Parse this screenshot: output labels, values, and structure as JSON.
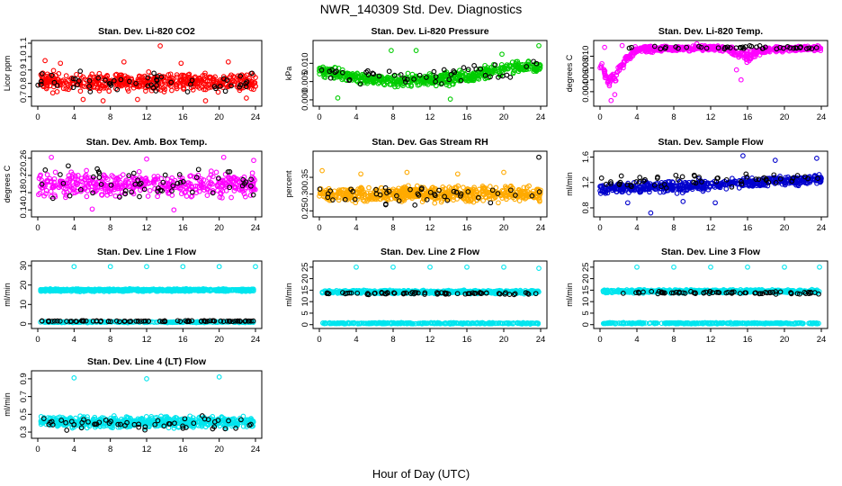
{
  "title": "NWR_140309  Std. Dev. Diagnostics",
  "xlabel": "Hour of Day (UTC)",
  "chart_data": [
    {
      "id": "co2",
      "type": "scatter",
      "title": "Stan. Dev. Li-820 CO2",
      "ylabel": "Licor ppm",
      "color": "#ff0000",
      "xlim": [
        0,
        24
      ],
      "ylim": [
        0.65,
        1.1
      ],
      "xticks": [
        "0",
        "4",
        "8",
        "12",
        "16",
        "20",
        "24"
      ],
      "yticks": [
        "0.7",
        "0.8",
        "0.9",
        "1.0",
        "1.1"
      ],
      "ytick_values": [
        0.7,
        0.8,
        0.9,
        1.0,
        1.1
      ],
      "series": [
        {
          "name": "dense",
          "band": [
            [
              0,
              0.72,
              0.9
            ],
            [
              24,
              0.72,
              0.9
            ]
          ],
          "count": 520,
          "seed": 11
        },
        {
          "name": "outliers",
          "x": [
            0.8,
            2.5,
            5.0,
            7.2,
            9.5,
            11.0,
            13.5,
            15.8,
            18.5,
            21.0,
            23.0
          ],
          "y": [
            0.97,
            0.95,
            0.68,
            0.67,
            0.96,
            0.68,
            1.08,
            0.95,
            0.67,
            0.96,
            0.69
          ]
        },
        {
          "name": "black",
          "color": "#000000",
          "band": [
            [
              0,
              0.7,
              0.92
            ],
            [
              24,
              0.7,
              0.92
            ]
          ],
          "count": 55,
          "seed": 12
        }
      ]
    },
    {
      "id": "press",
      "type": "scatter",
      "title": "Stan. Dev. Li-820 Pressure",
      "ylabel": "kPa",
      "color": "#00cc00",
      "xlim": [
        0,
        24
      ],
      "ylim": [
        -0.001,
        0.0155
      ],
      "xticks": [
        "0",
        "4",
        "8",
        "12",
        "16",
        "20",
        "24"
      ],
      "yticks": [
        "0.000",
        "0.005",
        "0.010"
      ],
      "ytick_values": [
        0.0,
        0.005,
        0.01
      ],
      "series": [
        {
          "name": "dense",
          "band": [
            [
              0,
              0.006,
              0.01
            ],
            [
              4,
              0.004,
              0.008
            ],
            [
              8,
              0.003,
              0.007
            ],
            [
              12,
              0.003,
              0.008
            ],
            [
              16,
              0.004,
              0.009
            ],
            [
              20,
              0.006,
              0.011
            ],
            [
              24,
              0.007,
              0.011
            ]
          ],
          "count": 560,
          "seed": 21
        },
        {
          "name": "outliers",
          "x": [
            2.0,
            7.8,
            10.5,
            14.2,
            19.8,
            23.8
          ],
          "y": [
            0.0005,
            0.0135,
            0.0135,
            0.0002,
            0.0125,
            0.0148
          ]
        },
        {
          "name": "black",
          "color": "#000000",
          "band": [
            [
              0,
              0.004,
              0.011
            ],
            [
              12,
              0.003,
              0.009
            ],
            [
              24,
              0.006,
              0.013
            ]
          ],
          "count": 50,
          "seed": 22
        }
      ]
    },
    {
      "id": "temp",
      "type": "scatter",
      "title": "Stan. Dev. Li-820 Temp.",
      "ylabel": "degrees C",
      "color": "#ff00ff",
      "xlim": [
        0,
        24
      ],
      "ylim": [
        0.002,
        0.0122
      ],
      "xticks": [
        "0",
        "4",
        "8",
        "12",
        "16",
        "20",
        "24"
      ],
      "yticks": [
        "0.004",
        "0.006",
        "0.008",
        "0.010"
      ],
      "ytick_values": [
        0.004,
        0.006,
        0.008,
        0.01
      ],
      "series": [
        {
          "name": "dense",
          "band": [
            [
              0,
              0.0075,
              0.0095
            ],
            [
              1,
              0.004,
              0.0075
            ],
            [
              2,
              0.006,
              0.009
            ],
            [
              3,
              0.009,
              0.011
            ],
            [
              4,
              0.0105,
              0.0118
            ],
            [
              12,
              0.0108,
              0.012
            ],
            [
              14,
              0.0105,
              0.012
            ],
            [
              15,
              0.009,
              0.0115
            ],
            [
              16,
              0.0085,
              0.0112
            ],
            [
              18,
              0.0105,
              0.0118
            ],
            [
              24,
              0.0108,
              0.012
            ]
          ],
          "count": 560,
          "seed": 31
        },
        {
          "name": "outliers",
          "x": [
            1.2,
            1.6,
            0.5,
            2.4,
            15.3,
            14.8,
            10.5
          ],
          "y": [
            0.0025,
            0.0035,
            0.0115,
            0.0118,
            0.006,
            0.0077,
            0.0121
          ]
        },
        {
          "name": "black",
          "color": "#000000",
          "band": [
            [
              3,
              0.011,
              0.012
            ],
            [
              24,
              0.011,
              0.012
            ]
          ],
          "count": 45,
          "seed": 32
        }
      ]
    },
    {
      "id": "amb",
      "type": "scatter",
      "title": "Stan. Dev. Amb. Box Temp.",
      "ylabel": "degrees C",
      "color": "#ff00ff",
      "xlim": [
        0,
        24
      ],
      "ylim": [
        0.13,
        0.27
      ],
      "xticks": [
        "0",
        "4",
        "8",
        "12",
        "16",
        "20",
        "24"
      ],
      "yticks": [
        "0.14",
        "0.18",
        "0.22",
        "0.26"
      ],
      "ytick_values": [
        0.14,
        0.18,
        0.22,
        0.26
      ],
      "series": [
        {
          "name": "dense",
          "band": [
            [
              0,
              0.16,
              0.235
            ],
            [
              24,
              0.16,
              0.235
            ]
          ],
          "count": 440,
          "seed": 41
        },
        {
          "name": "outliers",
          "x": [
            1.5,
            12.0,
            20.5,
            23.8,
            6.0,
            15.0
          ],
          "y": [
            0.262,
            0.258,
            0.262,
            0.255,
            0.142,
            0.14
          ]
        },
        {
          "name": "black",
          "color": "#000000",
          "band": [
            [
              0,
              0.15,
              0.25
            ],
            [
              24,
              0.15,
              0.25
            ]
          ],
          "count": 55,
          "seed": 42
        }
      ]
    },
    {
      "id": "rh",
      "type": "scatter",
      "title": "Stan. Dev. Gas Stream RH",
      "ylabel": "percent",
      "color": "#ffaa00",
      "xlim": [
        0,
        24
      ],
      "ylim": [
        0.24,
        0.42
      ],
      "xticks": [
        "0",
        "4",
        "8",
        "12",
        "16",
        "20",
        "24"
      ],
      "yticks": [
        "0.25",
        "0.30",
        "0.35"
      ],
      "ytick_values": [
        0.25,
        0.3,
        0.35
      ],
      "series": [
        {
          "name": "dense",
          "band": [
            [
              0,
              0.27,
              0.33
            ],
            [
              24,
              0.27,
              0.33
            ]
          ],
          "count": 620,
          "seed": 51
        },
        {
          "name": "outliers",
          "x": [
            0.3,
            4.5,
            9.5,
            15.0,
            20.0
          ],
          "y": [
            0.37,
            0.36,
            0.365,
            0.36,
            0.365
          ]
        },
        {
          "name": "black",
          "color": "#000000",
          "band": [
            [
              0,
              0.26,
              0.34
            ],
            [
              24,
              0.26,
              0.34
            ]
          ],
          "count": 45,
          "seed": 52,
          "extra_x": [
            23.8
          ],
          "extra_y": [
            0.41
          ]
        }
      ]
    },
    {
      "id": "flow",
      "type": "scatter",
      "title": "Stan. Dev. Sample Flow",
      "ylabel": "ml/min",
      "color": "#0000cc",
      "xlim": [
        0,
        24
      ],
      "ylim": [
        0.7,
        1.65
      ],
      "xticks": [
        "0",
        "4",
        "8",
        "12",
        "16",
        "20",
        "24"
      ],
      "yticks": [
        "0.8",
        "1.2",
        "1.6"
      ],
      "ytick_values": [
        0.8,
        1.2,
        1.6
      ],
      "series": [
        {
          "name": "dense",
          "band": [
            [
              0,
              1.0,
              1.2
            ],
            [
              8,
              1.0,
              1.25
            ],
            [
              16,
              1.1,
              1.3
            ],
            [
              24,
              1.15,
              1.35
            ]
          ],
          "count": 560,
          "seed": 61
        },
        {
          "name": "outliers",
          "x": [
            5.5,
            3.0,
            9.0,
            12.5,
            15.5,
            19.0,
            23.5
          ],
          "y": [
            0.72,
            0.88,
            0.9,
            0.88,
            1.62,
            1.55,
            1.58
          ]
        },
        {
          "name": "black",
          "color": "#000000",
          "band": [
            [
              0,
              1.05,
              1.35
            ],
            [
              24,
              1.1,
              1.45
            ]
          ],
          "count": 55,
          "seed": 62
        }
      ]
    },
    {
      "id": "line1",
      "type": "scatter",
      "title": "Stan. Dev. Line 1 Flow",
      "ylabel": "ml/min",
      "color": "#00e5ee",
      "xlim": [
        0,
        24
      ],
      "ylim": [
        -1,
        31
      ],
      "xticks": [
        "0",
        "4",
        "8",
        "12",
        "16",
        "20",
        "24"
      ],
      "yticks": [
        "0",
        "10",
        "20",
        "30"
      ],
      "ytick_values": [
        0,
        10,
        20,
        30
      ],
      "series": [
        {
          "name": "dense",
          "band": [
            [
              0.3,
              16.5,
              18.3
            ],
            [
              23.8,
              16.5,
              18.3
            ]
          ],
          "count": 650,
          "seed": 71
        },
        {
          "name": "dense2",
          "band": [
            [
              0.3,
              0.5,
              1.4
            ],
            [
              23.8,
              0.5,
              1.4
            ]
          ],
          "count": 300,
          "seed": 72
        },
        {
          "name": "outliers",
          "x": [
            4.0,
            8.0,
            12.0,
            16.0,
            20.0,
            24.0
          ],
          "y": [
            29.5,
            29.5,
            29.5,
            29.5,
            29.5,
            29.5
          ]
        },
        {
          "name": "black",
          "color": "#000000",
          "band": [
            [
              0.3,
              1.0,
              1.8
            ],
            [
              23.8,
              1.0,
              1.8
            ]
          ],
          "count": 90,
          "seed": 73
        }
      ]
    },
    {
      "id": "line2",
      "type": "scatter",
      "title": "Stan. Dev. Line 2 Flow",
      "ylabel": "ml/min",
      "color": "#00e5ee",
      "xlim": [
        0,
        24
      ],
      "ylim": [
        -0.5,
        26.5
      ],
      "xticks": [
        "0",
        "4",
        "8",
        "12",
        "16",
        "20",
        "24"
      ],
      "yticks": [
        "0",
        "5",
        "10",
        "15",
        "20",
        "25"
      ],
      "ytick_values": [
        0,
        5,
        10,
        15,
        20,
        25
      ],
      "series": [
        {
          "name": "dense",
          "band": [
            [
              0.3,
              13.2,
              15.2
            ],
            [
              23.8,
              13.2,
              15.2
            ]
          ],
          "count": 600,
          "seed": 81
        },
        {
          "name": "dense2",
          "band": [
            [
              0.3,
              0.2,
              1.0
            ],
            [
              23.8,
              0.2,
              1.0
            ]
          ],
          "count": 300,
          "seed": 82
        },
        {
          "name": "outliers",
          "x": [
            4.0,
            8.0,
            12.0,
            16.0,
            20.0,
            23.8
          ],
          "y": [
            25,
            25,
            25,
            25,
            25,
            24.5
          ]
        },
        {
          "name": "black",
          "color": "#000000",
          "band": [
            [
              0.5,
              13.0,
              14.5
            ],
            [
              23.8,
              12.8,
              14.2
            ]
          ],
          "count": 70,
          "seed": 83
        }
      ]
    },
    {
      "id": "line3",
      "type": "scatter",
      "title": "Stan. Dev. Line 3 Flow",
      "ylabel": "ml/min",
      "color": "#00e5ee",
      "xlim": [
        0,
        24
      ],
      "ylim": [
        -0.5,
        26.5
      ],
      "xticks": [
        "0",
        "4",
        "8",
        "12",
        "16",
        "20",
        "24"
      ],
      "yticks": [
        "0",
        "5",
        "10",
        "15",
        "20",
        "25"
      ],
      "ytick_values": [
        0,
        5,
        10,
        15,
        20,
        25
      ],
      "series": [
        {
          "name": "dense",
          "band": [
            [
              0.3,
              13.5,
              15.5
            ],
            [
              23.8,
              13.5,
              15.5
            ]
          ],
          "count": 600,
          "seed": 91
        },
        {
          "name": "dense2",
          "band": [
            [
              0.3,
              0.2,
              1.0
            ],
            [
              23.8,
              0.2,
              1.0
            ]
          ],
          "count": 300,
          "seed": 92
        },
        {
          "name": "outliers",
          "x": [
            4.0,
            8.0,
            12.0,
            16.0,
            20.0,
            23.8
          ],
          "y": [
            25,
            25,
            25,
            25,
            25,
            25
          ]
        },
        {
          "name": "black",
          "color": "#000000",
          "band": [
            [
              0.5,
              13.2,
              14.8
            ],
            [
              23.8,
              13.0,
              14.5
            ]
          ],
          "count": 70,
          "seed": 93
        }
      ]
    },
    {
      "id": "line4",
      "type": "scatter",
      "title": "Stan. Dev. Line 4 (LT) Flow",
      "ylabel": "ml/min",
      "color": "#00e5ee",
      "xlim": [
        0,
        24
      ],
      "ylim": [
        0.26,
        0.96
      ],
      "xticks": [
        "0",
        "4",
        "8",
        "12",
        "16",
        "20",
        "24"
      ],
      "yticks": [
        "0.3",
        "0.5",
        "0.7",
        "0.9"
      ],
      "ytick_values": [
        0.3,
        0.5,
        0.7,
        0.9
      ],
      "series": [
        {
          "name": "dense",
          "band": [
            [
              0.3,
              0.33,
              0.5
            ],
            [
              23.8,
              0.33,
              0.5
            ]
          ],
          "count": 620,
          "seed": 101
        },
        {
          "name": "outliers",
          "x": [
            4.0,
            12.0,
            20.0
          ],
          "y": [
            0.91,
            0.9,
            0.92
          ]
        },
        {
          "name": "black",
          "color": "#000000",
          "band": [
            [
              0.3,
              0.3,
              0.5
            ],
            [
              23.8,
              0.3,
              0.5
            ]
          ],
          "count": 55,
          "seed": 102
        }
      ]
    }
  ]
}
